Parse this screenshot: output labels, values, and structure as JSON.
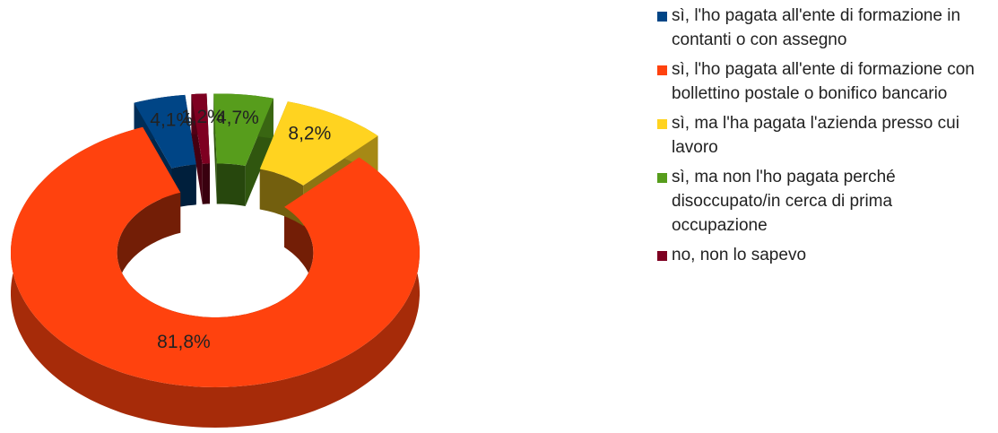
{
  "chart_data": {
    "type": "pie",
    "categories": [
      "sì, l'ho pagata all'ente di formazione in contanti o con assegno",
      "sì, l'ho pagata all'ente di formazione con bollettino postale o bonifico bancario",
      "sì, ma l'ha pagata l'azienda presso cui lavoro",
      "sì, ma non l'ho pagata perché disoccupato/in cerca di prima occupazione",
      "no, non lo sapevo"
    ],
    "values": [
      4.1,
      81.8,
      8.2,
      4.7,
      1.2
    ],
    "value_labels": [
      "4,1%",
      "81,8%",
      "8,2%",
      "4,7%",
      "1,2%"
    ],
    "colors": [
      "#004586",
      "#ff420e",
      "#ffd320",
      "#579d1c",
      "#7e0021"
    ],
    "donut": true,
    "three_d": true,
    "legend": "right"
  }
}
